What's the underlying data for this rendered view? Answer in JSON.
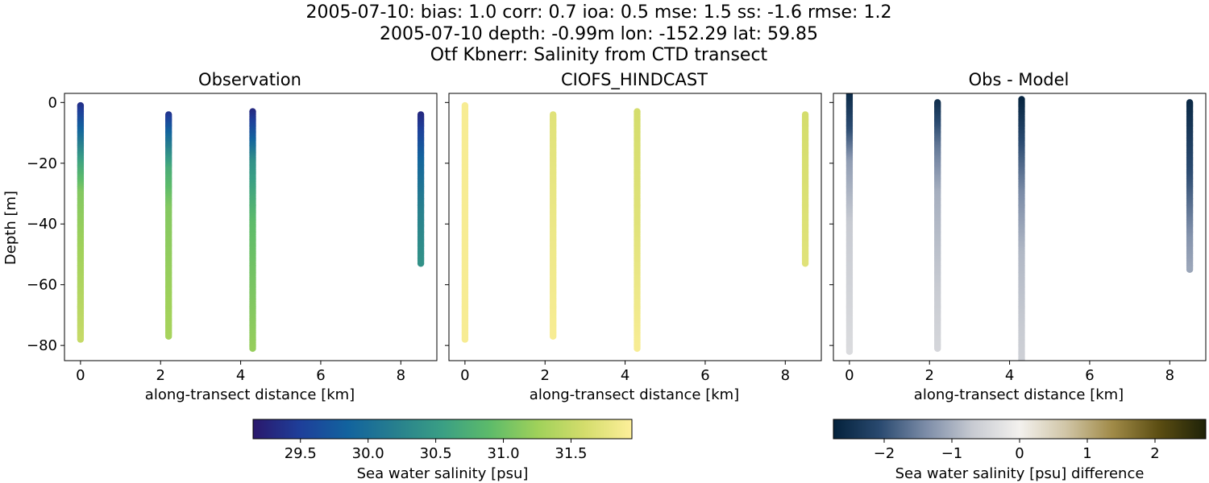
{
  "figure": {
    "title_lines": [
      "2005-07-10: bias: 1.0  corr: 0.7  ioa: 0.5  mse: 1.5  ss: -1.6  rmse: 1.2",
      "2005-07-10 depth: -0.99m lon: -152.29 lat: 59.85",
      "Otf Kbnerr: Salinity from CTD transect"
    ]
  },
  "chart_data": [
    {
      "type": "scatter",
      "title": "Observation",
      "xlabel": "along-transect distance [km]",
      "ylabel": "Depth [m]",
      "xlim": [
        -0.4,
        8.9
      ],
      "ylim": [
        -85,
        3
      ],
      "xticks": [
        0,
        2,
        4,
        6,
        8
      ],
      "yticks": [
        0,
        -20,
        -40,
        -60,
        -80
      ],
      "color_scale": "salinity",
      "profiles": [
        {
          "x": 0.0,
          "top": -1,
          "bottom": -78,
          "stops": [
            [
              0,
              29.3
            ],
            [
              -10,
              29.9
            ],
            [
              -20,
              30.6
            ],
            [
              -30,
              31.1
            ],
            [
              -78,
              31.5
            ]
          ]
        },
        {
          "x": 2.2,
          "top": -4,
          "bottom": -77,
          "stops": [
            [
              -4,
              29.4
            ],
            [
              -15,
              30.2
            ],
            [
              -22,
              30.7
            ],
            [
              -35,
              31.1
            ],
            [
              -77,
              31.3
            ]
          ]
        },
        {
          "x": 4.3,
          "top": -3,
          "bottom": -81,
          "stops": [
            [
              -3,
              29.3
            ],
            [
              -12,
              29.8
            ],
            [
              -20,
              30.4
            ],
            [
              -40,
              30.9
            ],
            [
              -81,
              31.2
            ]
          ]
        },
        {
          "x": 8.5,
          "top": -4,
          "bottom": -53,
          "stops": [
            [
              -4,
              29.3
            ],
            [
              -20,
              29.9
            ],
            [
              -35,
              30.2
            ],
            [
              -53,
              30.4
            ]
          ]
        }
      ]
    },
    {
      "type": "scatter",
      "title": "CIOFS_HINDCAST",
      "xlabel": "along-transect distance [km]",
      "ylabel": "",
      "xlim": [
        -0.4,
        8.9
      ],
      "ylim": [
        -85,
        3
      ],
      "xticks": [
        0,
        2,
        4,
        6,
        8
      ],
      "yticks": [
        0,
        -20,
        -40,
        -60,
        -80
      ],
      "color_scale": "salinity",
      "profiles": [
        {
          "x": 0.0,
          "top": -1,
          "bottom": -78,
          "stops": [
            [
              -1,
              31.9
            ],
            [
              -78,
              31.9
            ]
          ]
        },
        {
          "x": 2.2,
          "top": -4,
          "bottom": -77,
          "stops": [
            [
              -4,
              31.7
            ],
            [
              -40,
              31.8
            ],
            [
              -77,
              31.9
            ]
          ]
        },
        {
          "x": 4.3,
          "top": -3,
          "bottom": -81,
          "stops": [
            [
              -3,
              31.6
            ],
            [
              -40,
              31.7
            ],
            [
              -81,
              31.9
            ]
          ]
        },
        {
          "x": 8.5,
          "top": -4,
          "bottom": -53,
          "stops": [
            [
              -4,
              31.6
            ],
            [
              -53,
              31.7
            ]
          ]
        }
      ]
    },
    {
      "type": "scatter",
      "title": "Obs - Model",
      "xlabel": "along-transect distance [km]",
      "ylabel": "",
      "xlim": [
        -0.4,
        8.9
      ],
      "ylim": [
        -85,
        3
      ],
      "xticks": [
        0,
        2,
        4,
        6,
        8
      ],
      "yticks": [
        0,
        -20,
        -40,
        -60,
        -80
      ],
      "color_scale": "difference",
      "profiles": [
        {
          "x": 0.0,
          "top": 3,
          "bottom": -82,
          "stops": [
            [
              3,
              -2.6
            ],
            [
              -10,
              -2.0
            ],
            [
              -20,
              -1.2
            ],
            [
              -40,
              -0.7
            ],
            [
              -82,
              -0.4
            ]
          ]
        },
        {
          "x": 2.2,
          "top": 0,
          "bottom": -81,
          "stops": [
            [
              0,
              -2.5
            ],
            [
              -15,
              -1.6
            ],
            [
              -30,
              -1.0
            ],
            [
              -81,
              -0.5
            ]
          ]
        },
        {
          "x": 4.3,
          "top": 1,
          "bottom": -85,
          "stops": [
            [
              1,
              -2.7
            ],
            [
              -15,
              -2.0
            ],
            [
              -30,
              -1.4
            ],
            [
              -50,
              -0.9
            ],
            [
              -85,
              -0.6
            ]
          ]
        },
        {
          "x": 8.5,
          "top": 0,
          "bottom": -55,
          "stops": [
            [
              0,
              -2.6
            ],
            [
              -25,
              -2.0
            ],
            [
              -45,
              -1.3
            ],
            [
              -55,
              -1.1
            ]
          ]
        }
      ]
    }
  ],
  "colorbars": [
    {
      "name": "salinity",
      "label": "Sea water salinity [psu]",
      "range": [
        29.15,
        31.95
      ],
      "ticks": [
        29.5,
        30.0,
        30.5,
        31.0,
        31.5
      ],
      "tick_labels": [
        "29.5",
        "30.0",
        "30.5",
        "31.0",
        "31.5"
      ],
      "colors": [
        "#2a186c",
        "#1e3f9a",
        "#12639e",
        "#277f8e",
        "#3a9f84",
        "#5dbb6a",
        "#9fd15a",
        "#d4dd6c",
        "#fdef9a"
      ]
    },
    {
      "name": "difference",
      "label": "Sea water salinity [psu] difference",
      "range": [
        -2.75,
        2.75
      ],
      "ticks": [
        -2,
        -1,
        0,
        1,
        2
      ],
      "tick_labels": [
        "−2",
        "−1",
        "0",
        "1",
        "2"
      ],
      "colors": [
        "#03213b",
        "#2a4a70",
        "#7d8da8",
        "#c8cbd2",
        "#f3f1ee",
        "#d0c5a6",
        "#a08a47",
        "#5b4d12",
        "#1e2208"
      ]
    }
  ]
}
